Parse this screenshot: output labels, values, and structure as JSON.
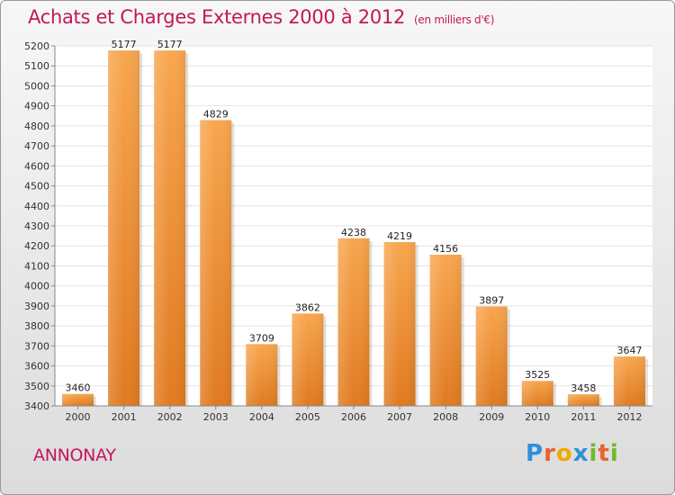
{
  "chart_data": {
    "type": "bar",
    "title": "Achats et Charges Externes 2000 à 2012",
    "subtitle": "(en milliers d'€)",
    "categories": [
      "2000",
      "2001",
      "2002",
      "2003",
      "2004",
      "2005",
      "2006",
      "2007",
      "2008",
      "2009",
      "2010",
      "2011",
      "2012"
    ],
    "values": [
      3460,
      5177,
      5177,
      4829,
      3709,
      3862,
      4238,
      4219,
      4156,
      3897,
      3525,
      3458,
      3647
    ],
    "ylim": [
      3400,
      5200
    ],
    "yticks": [
      "3400",
      "3500",
      "3600",
      "3700",
      "3800",
      "3900",
      "4000",
      "4100",
      "4200",
      "4300",
      "4400",
      "4500",
      "4600",
      "4700",
      "4800",
      "4900",
      "5000",
      "5100",
      "5200"
    ],
    "grid": true,
    "legend": "none",
    "colors": {
      "bar_top": "#f8a64e",
      "bar_bottom": "#e07a20",
      "title": "#c2185b",
      "grid": "#e4e4e4"
    }
  },
  "footer": {
    "city": "ANNONAY",
    "logo_letters": [
      {
        "ch": "P",
        "color": "#2f8fd8"
      },
      {
        "ch": "r",
        "color": "#e8632a"
      },
      {
        "ch": "o",
        "color": "#f2a900"
      },
      {
        "ch": "x",
        "color": "#2f8fd8"
      },
      {
        "ch": "i",
        "color": "#6dbb2c"
      },
      {
        "ch": "t",
        "color": "#e8632a"
      },
      {
        "ch": "i",
        "color": "#6dbb2c"
      }
    ]
  }
}
